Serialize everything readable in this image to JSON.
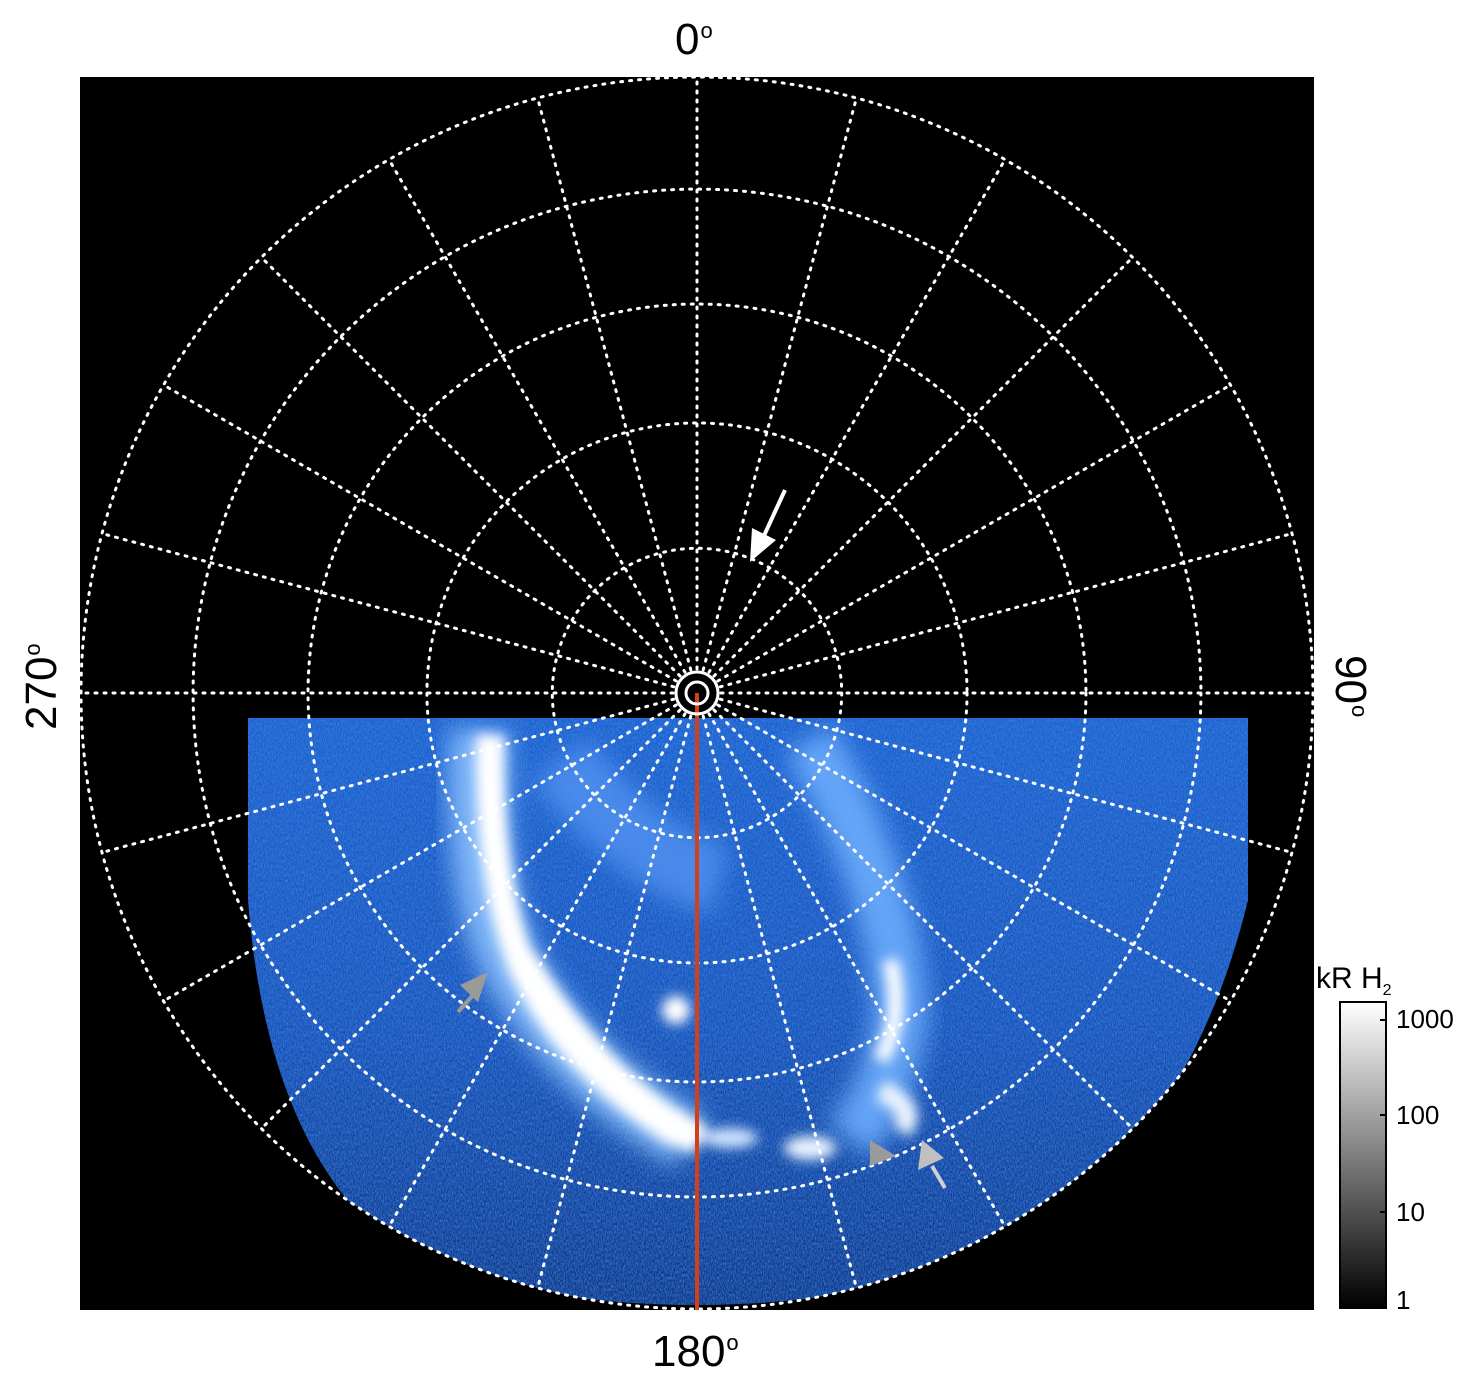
{
  "figure": {
    "azimuth_labels": {
      "top": "0",
      "right": "90",
      "bottom": "180",
      "left": "270"
    },
    "degree_symbol": "o",
    "colorbar": {
      "unit": "kR H",
      "unit_subscript": "2",
      "scale": "log",
      "ticks": [
        "1000",
        "100",
        "10",
        "1"
      ],
      "colormap": [
        "#000000",
        "#ffffff"
      ]
    },
    "colors": {
      "background": "#000000",
      "grid": "#ffffff",
      "aurora_low": "#0a2a6a",
      "aurora_mid": "#2f7fe0",
      "aurora_high": "#ffffff",
      "meridian_line": "#d2401a",
      "arrow_white": "#ffffff",
      "arrow_grey": "#9a9a9a"
    },
    "grid_circles": 5,
    "grid_meridians": 24
  }
}
